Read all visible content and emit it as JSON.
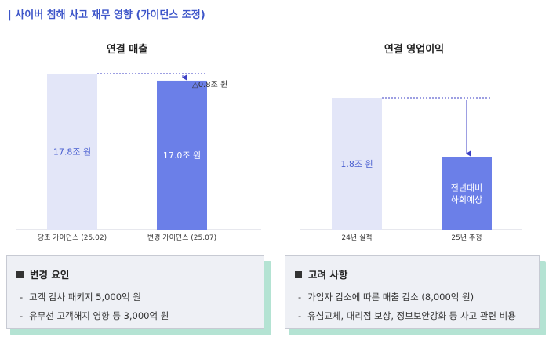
{
  "header": {
    "title": "| 사이버 침해 사고 재무 영향 (가이던스 조정)"
  },
  "colors": {
    "accent": "#3d55c9",
    "bar_light": "#e3e6f8",
    "bar_dark": "#6b7fe8",
    "arrow": "#3b3fc4",
    "panel_shadow": "#b4e3d3"
  },
  "chart_data": [
    {
      "type": "bar",
      "title": "연결 매출",
      "categories": [
        "당초 가이던스 (25.02)",
        "변경 가이던스 (25.07)"
      ],
      "values": [
        17.8,
        17.0
      ],
      "value_labels": [
        "17.8조 원",
        "17.0조 원"
      ],
      "ylim": [
        0,
        17.8
      ],
      "annotation": "△0.8조 원",
      "grid": false
    },
    {
      "type": "bar",
      "title": "연결 영업이익",
      "categories": [
        "24년 실적",
        "25년 추정"
      ],
      "values": [
        1.8,
        null
      ],
      "value_labels": [
        "1.8조 원",
        "전년대비\n하회예상"
      ],
      "grid": false
    }
  ],
  "panels": [
    {
      "title": "변경 요인",
      "items": [
        "고객 감사 패키지 5,000억 원",
        "유무선 고객해지 영향 등 3,000억 원"
      ]
    },
    {
      "title": "고려 사항",
      "items": [
        "가입자 감소에 따른 매출 감소 (8,000억 원)",
        "유심교체, 대리점 보상, 정보보안강화 등 사고 관련 비용"
      ]
    }
  ],
  "icons": {
    "bullet": "square-bullet-icon",
    "item_marker": "dash-icon"
  }
}
